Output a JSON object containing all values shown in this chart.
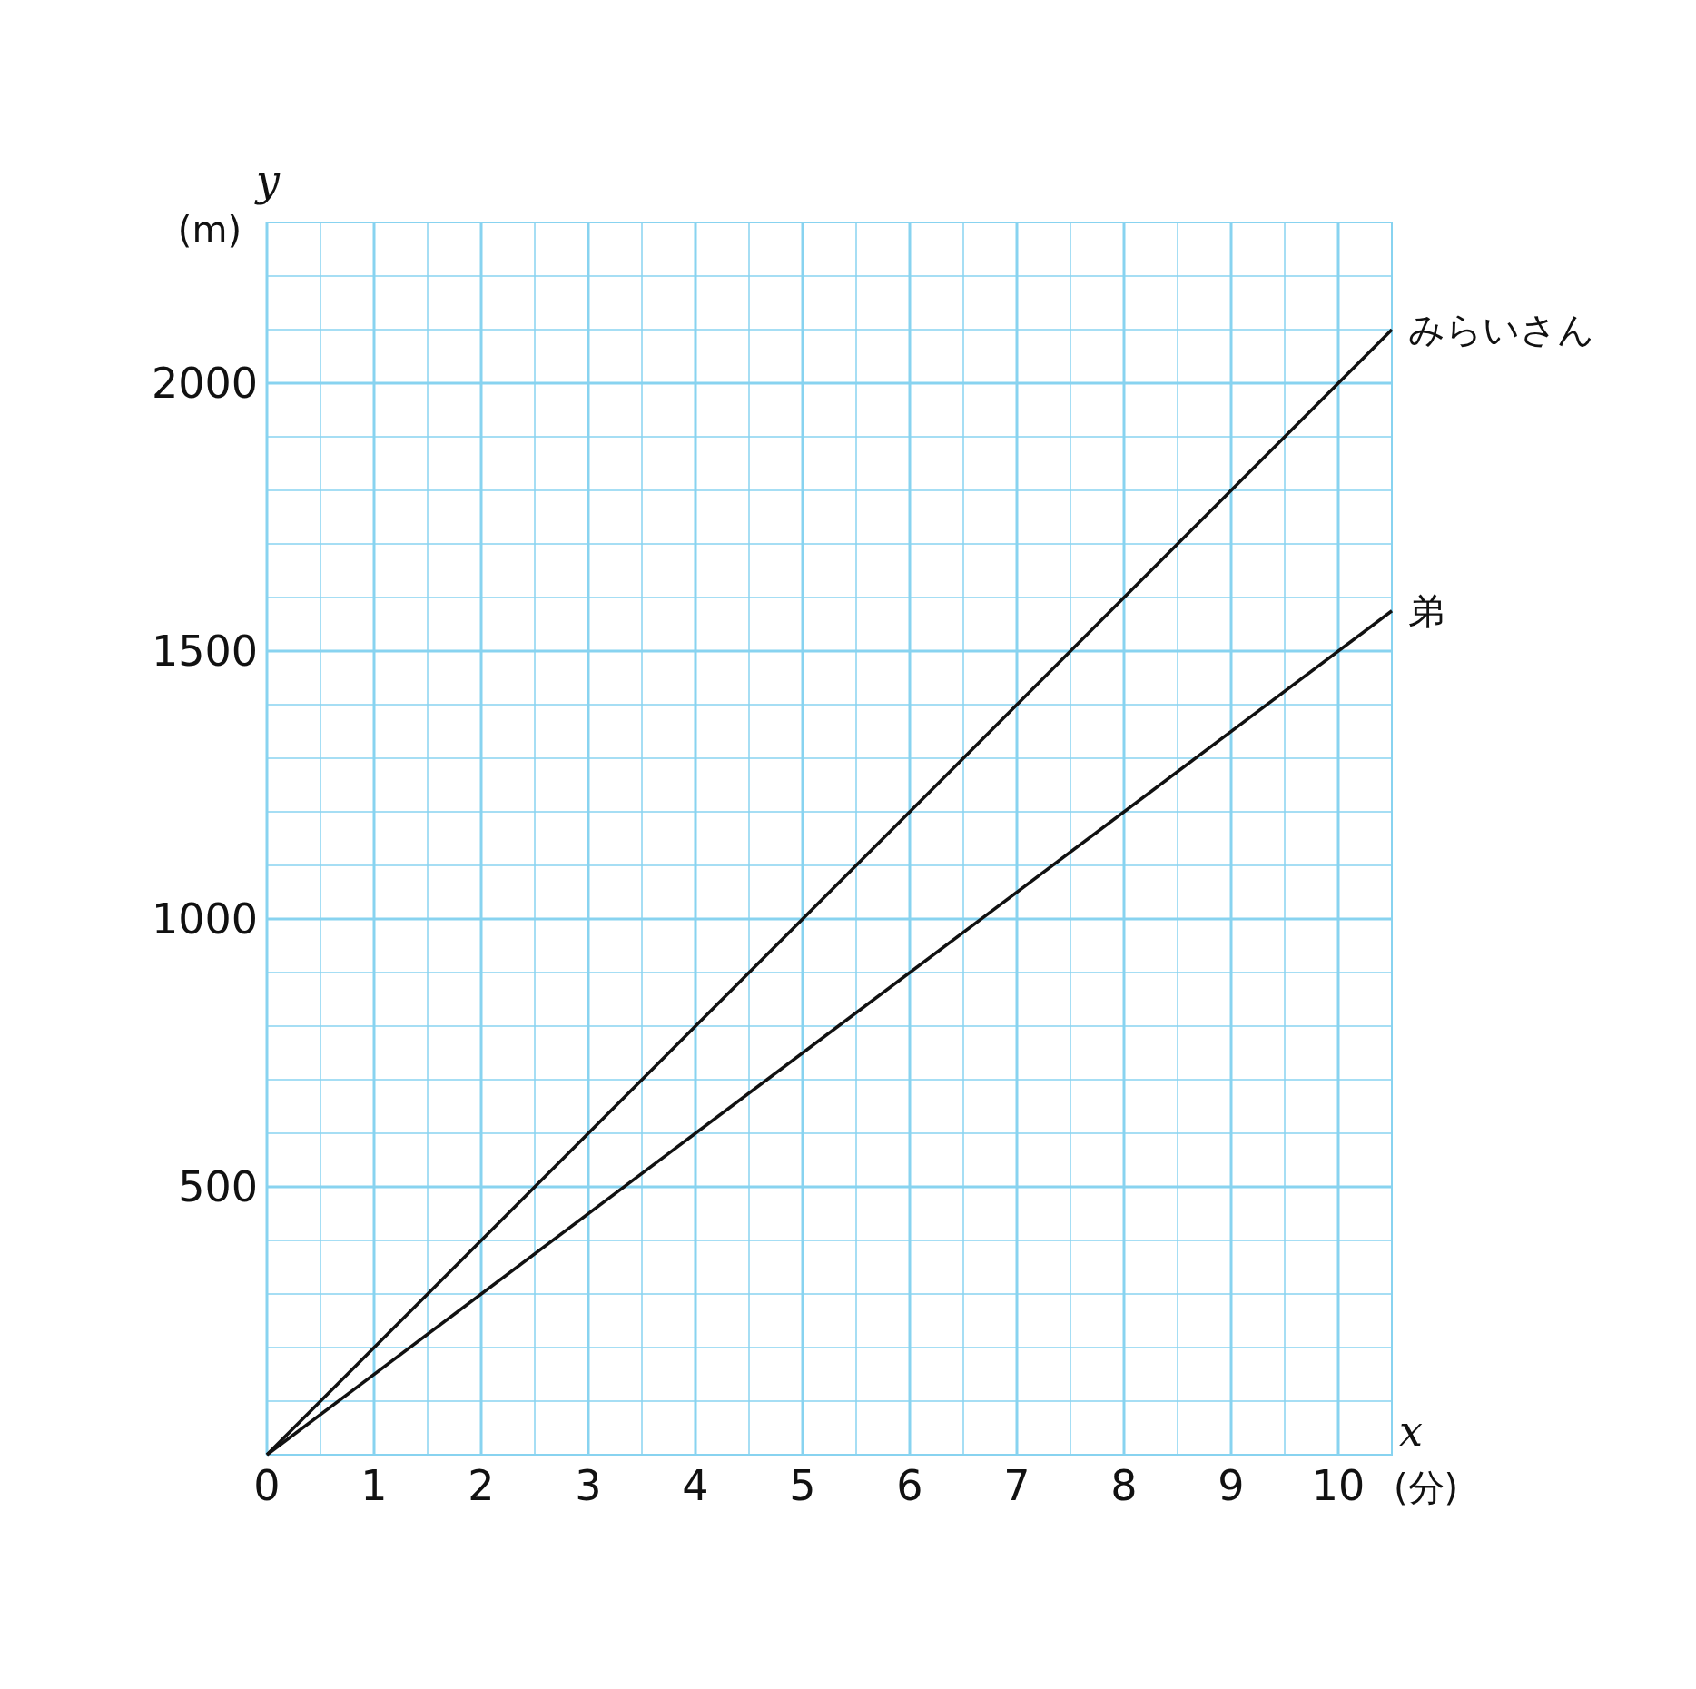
{
  "chart_data": {
    "type": "line",
    "xlabel": "(分)",
    "ylabel": "(m)",
    "annotations": [
      "x",
      "y"
    ],
    "xlim": [
      0,
      10.5
    ],
    "ylim": [
      0,
      2300
    ],
    "xticks": [
      0,
      {
        "value": 0.5,
        "label": null
      },
      1,
      {
        "value": 1.5,
        "label": null
      },
      2,
      {
        "value": 2.5,
        "label": null
      },
      3,
      {
        "value": 3.5,
        "label": null
      },
      4,
      {
        "value": 4.5,
        "label": null
      },
      5,
      {
        "value": 5.5,
        "label": null
      },
      6,
      {
        "value": 6.5,
        "label": null
      },
      7,
      {
        "value": 7.5,
        "label": null
      },
      8,
      {
        "value": 8.5,
        "label": null
      },
      9,
      {
        "value": 9.5,
        "label": null
      },
      10,
      {
        "value": 10.5,
        "label": null
      }
    ],
    "yticks": [
      {
        "value": 0,
        "label": null
      },
      {
        "value": 100,
        "label": null
      },
      {
        "value": 200,
        "label": null
      },
      {
        "value": 300,
        "label": null
      },
      {
        "value": 400,
        "label": null
      },
      500,
      {
        "value": 600,
        "label": null
      },
      {
        "value": 700,
        "label": null
      },
      {
        "value": 800,
        "label": null
      },
      {
        "value": 900,
        "label": null
      },
      1000,
      {
        "value": 1100,
        "label": null
      },
      {
        "value": 1200,
        "label": null
      },
      {
        "value": 1300,
        "label": null
      },
      {
        "value": 1400,
        "label": null
      },
      1500,
      {
        "value": 1600,
        "label": null
      },
      {
        "value": 1700,
        "label": null
      },
      {
        "value": 1800,
        "label": null
      },
      {
        "value": 1900,
        "label": null
      },
      2000,
      {
        "value": 2100,
        "label": null
      },
      {
        "value": 2200,
        "label": null
      },
      {
        "value": 2300,
        "label": null
      }
    ],
    "x": [
      0,
      10.5
    ],
    "grid": true,
    "marker": "none",
    "line_style": "solid",
    "series": [
      {
        "name": "みらいさん",
        "color": "#111111",
        "values": [
          0,
          2100
        ]
      },
      {
        "name": "弟",
        "color": "#111111",
        "values": [
          0,
          1575
        ]
      }
    ]
  }
}
